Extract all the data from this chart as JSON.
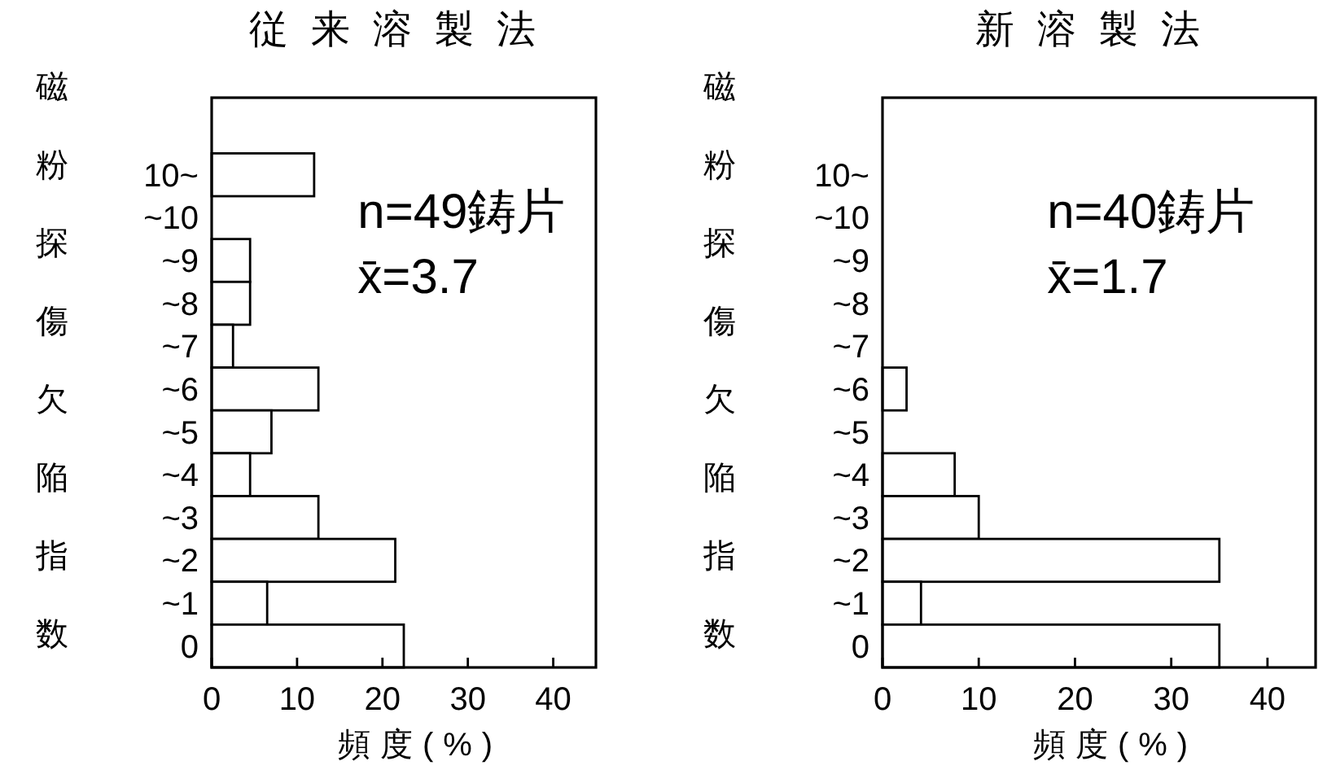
{
  "chart_data": [
    {
      "type": "bar",
      "orientation": "horizontal",
      "title": "従来溶製法",
      "xlabel": "頻度(%)",
      "ylabel": "磁粉探傷欠陥指数",
      "categories": [
        "10~",
        "~10",
        "~9",
        "~8",
        "~7",
        "~6",
        "~5",
        "~4",
        "~3",
        "~2",
        "~1",
        "0"
      ],
      "values": [
        12,
        0,
        4.5,
        4.5,
        2.5,
        12.5,
        7,
        4.5,
        12.5,
        21.5,
        6.5,
        22.5
      ],
      "color": "#ffffff",
      "xlim": [
        0,
        45
      ],
      "xticks": [
        0,
        10,
        20,
        30,
        40
      ],
      "grid": false,
      "annotations": [
        "n=49鋳片",
        "x̄=3.7"
      ]
    },
    {
      "type": "bar",
      "orientation": "horizontal",
      "title": "新溶製法",
      "xlabel": "頻度(%)",
      "ylabel": "磁粉探傷欠陥指数",
      "categories": [
        "10~",
        "~10",
        "~9",
        "~8",
        "~7",
        "~6",
        "~5",
        "~4",
        "~3",
        "~2",
        "~1",
        "0"
      ],
      "values": [
        0,
        0,
        0,
        0,
        0,
        2.5,
        0,
        7.5,
        10,
        35,
        4,
        35
      ],
      "color": "#ffffff",
      "xlim": [
        0,
        45
      ],
      "xticks": [
        0,
        10,
        20,
        30,
        40
      ],
      "grid": false,
      "annotations": [
        "n=40鋳片",
        "x̄=1.7"
      ]
    }
  ]
}
